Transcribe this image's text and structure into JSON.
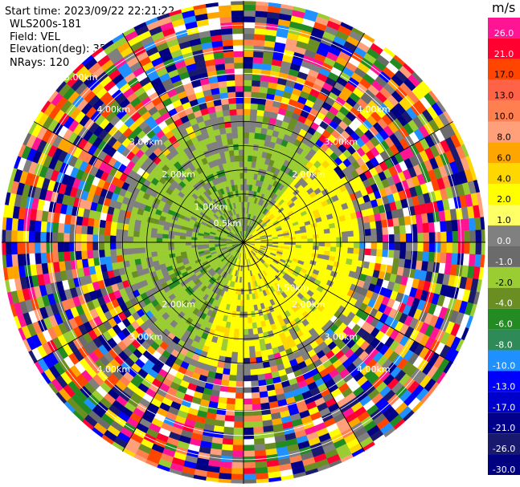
{
  "header": {
    "start_time": "Start time: 2023/09/22 22:21:22",
    "instrument": "WLS200s-181",
    "field": "Field: VEL",
    "elevation": "Elevation(deg): 35.30",
    "nrays": "NRays: 120"
  },
  "colorbar": {
    "units": "m/s",
    "labels": [
      "26.0",
      "21.0",
      "17.0",
      "13.0",
      "10.0",
      "8.0",
      "6.0",
      "4.0",
      "2.0",
      "1.0",
      "0.0",
      "-1.0",
      "-2.0",
      "-4.0",
      "-6.0",
      "-8.0",
      "-10.0",
      "-13.0",
      "-17.0",
      "-21.0",
      "-26.0",
      "-30.0"
    ],
    "colors": [
      "#ff1493",
      "#ff0030",
      "#ff4500",
      "#ff6347",
      "#ff7f50",
      "#ffa07a",
      "#ffa500",
      "#ffd700",
      "#ffff00",
      "#ffff66",
      "#808080",
      "#6b6b6b",
      "#9acd32",
      "#6b8e23",
      "#228b22",
      "#2e8b57",
      "#1e90ff",
      "#0000ff",
      "#0000cd",
      "#00008b",
      "#191970",
      "#000080"
    ]
  },
  "chart_data": {
    "type": "heatmap",
    "projection": "polar-ppi",
    "field": "VEL",
    "n_rays": 120,
    "elevation_deg": 35.3,
    "units": "m/s",
    "range_ring_labels": [
      "0.5km",
      "1.00km",
      "1.50km",
      "2.00km",
      "2.00km",
      "2.00km",
      "2.00km",
      "3.00km",
      "3.00km",
      "3.00km",
      "3.00km",
      "4.00km",
      "4.00km",
      "4.00km",
      "4.00km",
      "5.00km"
    ],
    "inner_region": {
      "range_km": [
        0,
        2.5
      ],
      "positive_sector": "east/south-east",
      "positive_value": 2.0,
      "negative_sector": "north/west",
      "negative_value": -2.0
    },
    "outer_region": {
      "range_km": [
        2.5,
        5.0
      ],
      "pattern": "noise"
    },
    "max_range_km": 5.0
  }
}
